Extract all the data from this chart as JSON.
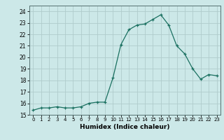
{
  "x": [
    0,
    1,
    2,
    3,
    4,
    5,
    6,
    7,
    8,
    9,
    10,
    11,
    12,
    13,
    14,
    15,
    16,
    17,
    18,
    19,
    20,
    21,
    22,
    23
  ],
  "y": [
    15.4,
    15.6,
    15.6,
    15.7,
    15.6,
    15.6,
    15.7,
    16.0,
    16.1,
    16.1,
    18.2,
    21.1,
    22.4,
    22.8,
    22.9,
    23.3,
    23.7,
    22.8,
    21.0,
    20.3,
    19.0,
    18.1,
    18.5,
    18.4
  ],
  "line_color": "#1a7060",
  "marker": "+",
  "marker_size": 3,
  "bg_color": "#cce8e8",
  "grid_color": "#b0cccc",
  "xlabel": "Humidex (Indice chaleur)",
  "ylim": [
    15,
    24.5
  ],
  "xlim": [
    -0.5,
    23.5
  ],
  "yticks": [
    15,
    16,
    17,
    18,
    19,
    20,
    21,
    22,
    23,
    24
  ],
  "xticks": [
    0,
    1,
    2,
    3,
    4,
    5,
    6,
    7,
    8,
    9,
    10,
    11,
    12,
    13,
    14,
    15,
    16,
    17,
    18,
    19,
    20,
    21,
    22,
    23
  ]
}
